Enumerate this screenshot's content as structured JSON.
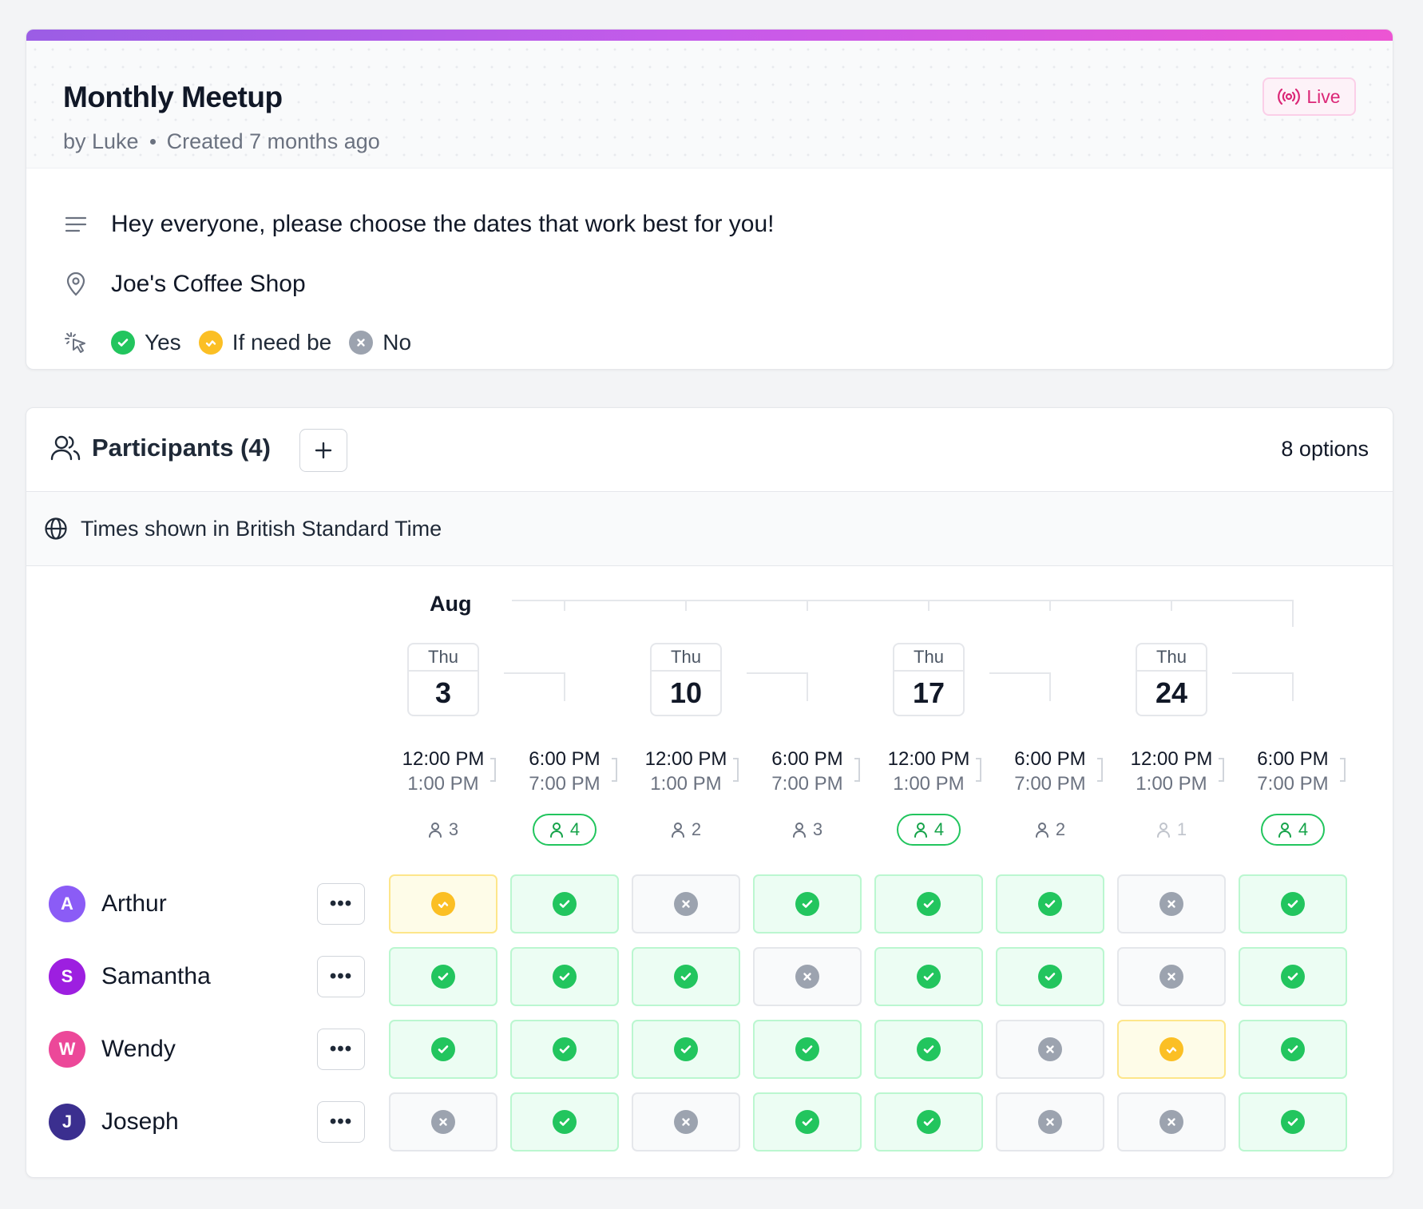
{
  "poll": {
    "title": "Monthly Meetup",
    "by": "by Luke",
    "created": "Created 7 months ago",
    "status": "Live",
    "description": "Hey everyone, please choose the dates that work best for you!",
    "location": "Joe's Coffee Shop",
    "legend": {
      "yes": "Yes",
      "ifneed": "If need be",
      "no": "No"
    }
  },
  "participants": {
    "title": "Participants (4)",
    "options": "8 options",
    "timezone": "Times shown in British Standard Time",
    "month": "Aug",
    "dates": [
      {
        "dow": "Thu",
        "day": "3"
      },
      {
        "dow": "Thu",
        "day": "10"
      },
      {
        "dow": "Thu",
        "day": "17"
      },
      {
        "dow": "Thu",
        "day": "24"
      }
    ],
    "slots": [
      {
        "start": "12:00 PM",
        "end": "1:00 PM",
        "count": "3",
        "top": false
      },
      {
        "start": "6:00 PM",
        "end": "7:00 PM",
        "count": "4",
        "top": true
      },
      {
        "start": "12:00 PM",
        "end": "1:00 PM",
        "count": "2",
        "top": false
      },
      {
        "start": "6:00 PM",
        "end": "7:00 PM",
        "count": "3",
        "top": false
      },
      {
        "start": "12:00 PM",
        "end": "1:00 PM",
        "count": "4",
        "top": true
      },
      {
        "start": "6:00 PM",
        "end": "7:00 PM",
        "count": "2",
        "top": false
      },
      {
        "start": "12:00 PM",
        "end": "1:00 PM",
        "count": "1",
        "top": false
      },
      {
        "start": "6:00 PM",
        "end": "7:00 PM",
        "count": "4",
        "top": true
      }
    ],
    "people": [
      {
        "initial": "A",
        "name": "Arthur",
        "color": "#8b5cf6",
        "votes": [
          "ifneed",
          "yes",
          "no",
          "yes",
          "yes",
          "yes",
          "no",
          "yes"
        ]
      },
      {
        "initial": "S",
        "name": "Samantha",
        "color": "#9d1fe0",
        "votes": [
          "yes",
          "yes",
          "yes",
          "no",
          "yes",
          "yes",
          "no",
          "yes"
        ]
      },
      {
        "initial": "W",
        "name": "Wendy",
        "color": "#ec4899",
        "votes": [
          "yes",
          "yes",
          "yes",
          "yes",
          "yes",
          "no",
          "ifneed",
          "yes"
        ]
      },
      {
        "initial": "J",
        "name": "Joseph",
        "color": "#3b2f8f",
        "votes": [
          "no",
          "yes",
          "no",
          "yes",
          "yes",
          "no",
          "no",
          "yes"
        ]
      }
    ],
    "menu_label": "•••",
    "add_label": "+"
  },
  "colors": {
    "yes": "#22c55e",
    "ifneed": "#fbbf24",
    "no": "#9ca3af",
    "live": "#db2777"
  }
}
